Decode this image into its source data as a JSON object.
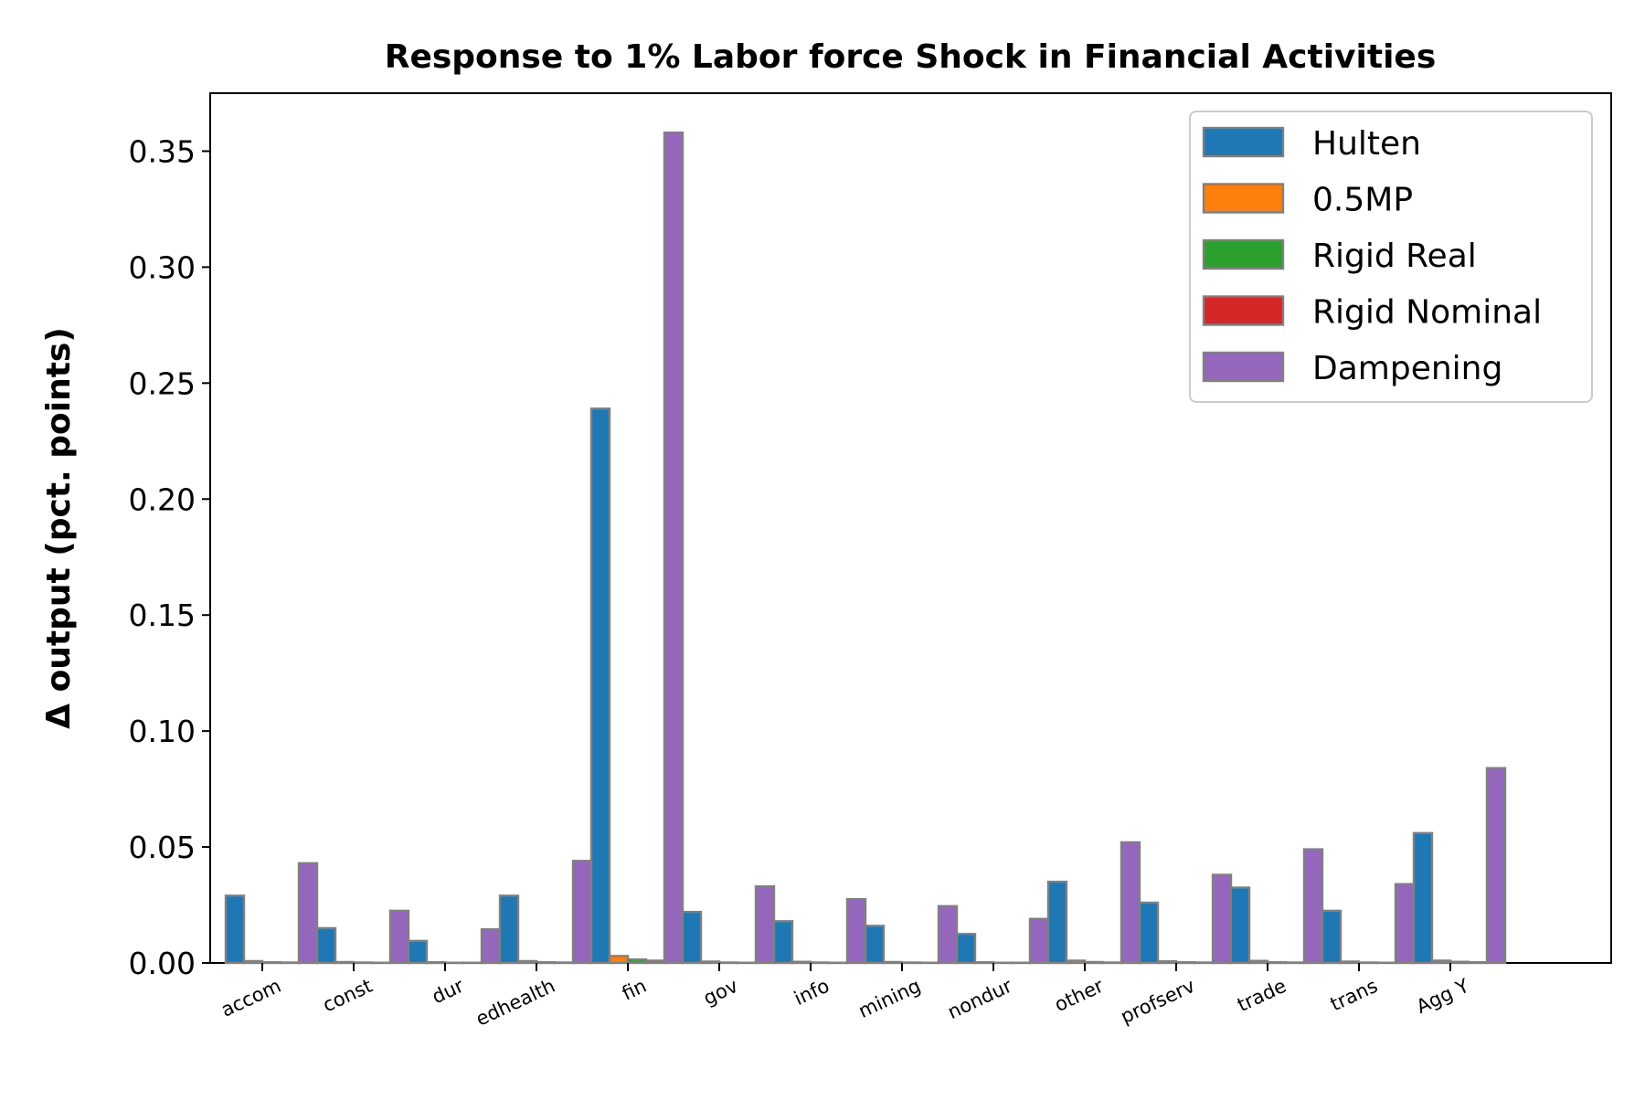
{
  "chart_data": {
    "type": "bar",
    "title": "Response to 1% Labor force Shock in Financial Activities",
    "xlabel": "",
    "ylabel": "Δ output (pct. points)",
    "ylim": [
      0,
      0.375
    ],
    "yticks": [
      0.0,
      0.05,
      0.1,
      0.15,
      0.2,
      0.25,
      0.3,
      0.35
    ],
    "ytick_labels": [
      "0.00",
      "0.05",
      "0.10",
      "0.15",
      "0.20",
      "0.25",
      "0.30",
      "0.35"
    ],
    "categories": [
      "accom",
      "const",
      "dur",
      "edhealth",
      "fin",
      "gov",
      "info",
      "mining",
      "nondur",
      "other",
      "profserv",
      "trade",
      "trans",
      "Agg Y"
    ],
    "series": [
      {
        "name": "Hulten",
        "color": "#1f77b4",
        "values": [
          0.029,
          0.015,
          0.0095,
          0.029,
          0.239,
          0.022,
          0.018,
          0.016,
          0.0125,
          0.035,
          0.026,
          0.0325,
          0.0225,
          0.056
        ]
      },
      {
        "name": "0.5MP",
        "color": "#ff7f0e",
        "values": [
          0.0008,
          0.0004,
          0.0003,
          0.0008,
          0.003,
          0.0006,
          0.0005,
          0.0004,
          0.0003,
          0.001,
          0.0007,
          0.0009,
          0.0006,
          0.001
        ]
      },
      {
        "name": "Rigid Real",
        "color": "#2ca02c",
        "values": [
          0.0003,
          0.0002,
          0.0001,
          0.0003,
          0.0015,
          0.0002,
          0.0002,
          0.0002,
          0.0001,
          0.0004,
          0.0003,
          0.0003,
          0.0002,
          0.0005
        ]
      },
      {
        "name": "Rigid Nominal",
        "color": "#d62728",
        "values": [
          0.0002,
          0.0001,
          0.0001,
          0.0002,
          0.001,
          0.0001,
          0.0001,
          0.0001,
          0.0001,
          0.0002,
          0.0002,
          0.0002,
          0.0001,
          0.0003
        ]
      },
      {
        "name": "Dampening",
        "color": "#9467bd",
        "values": [
          0.043,
          0.0225,
          0.0145,
          0.044,
          0.358,
          0.033,
          0.0275,
          0.0245,
          0.019,
          0.052,
          0.038,
          0.049,
          0.034,
          0.084
        ]
      }
    ],
    "legend_position": "top-right",
    "bar_edge_color": "#808080",
    "grid": false
  }
}
